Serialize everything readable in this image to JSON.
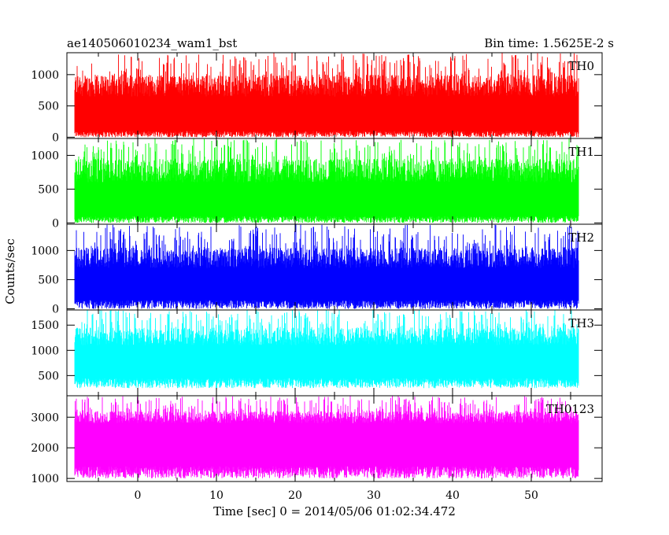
{
  "chart_data": {
    "type": "line",
    "title": "ae140506010234_wam1_bst",
    "subtitle": "Bin time: 1.5625E-2 s",
    "xlabel": "Time [sec] 0 = 2014/05/06 01:02:34.472",
    "ylabel": "Counts/sec",
    "xlim": [
      -9,
      59
    ],
    "x_ticks": [
      0,
      10,
      20,
      30,
      40,
      50
    ],
    "data_range_x": [
      -8,
      56
    ],
    "panels": [
      {
        "name": "TH0",
        "color": "#ff0000",
        "ylim": [
          -20,
          1350
        ],
        "y_ticks": [
          0,
          500,
          1000
        ],
        "band": [
          [
            0,
            100
          ],
          [
            650,
            1000
          ],
          [
            950,
            1350
          ]
        ]
      },
      {
        "name": "TH1",
        "color": "#00ff00",
        "ylim": [
          -20,
          1250
        ],
        "y_ticks": [
          0,
          500,
          1000
        ],
        "band": [
          [
            0,
            100
          ],
          [
            600,
            950
          ],
          [
            900,
            1250
          ]
        ]
      },
      {
        "name": "TH2",
        "color": "#0000ff",
        "ylim": [
          -20,
          1450
        ],
        "y_ticks": [
          0,
          500,
          1000
        ],
        "band": [
          [
            0,
            150
          ],
          [
            700,
            1050
          ],
          [
            1000,
            1450
          ]
        ]
      },
      {
        "name": "TH3",
        "color": "#00ffff",
        "ylim": [
          100,
          1800
        ],
        "y_ticks": [
          500,
          1000,
          1500
        ],
        "band": [
          [
            250,
            450
          ],
          [
            1100,
            1450
          ],
          [
            1400,
            1800
          ]
        ]
      },
      {
        "name": "TH0123",
        "color": "#ff00ff",
        "ylim": [
          900,
          3700
        ],
        "y_ticks": [
          1000,
          2000,
          3000
        ],
        "band": [
          [
            1000,
            1400
          ],
          [
            2800,
            3200
          ],
          [
            3200,
            3700
          ]
        ]
      }
    ]
  }
}
